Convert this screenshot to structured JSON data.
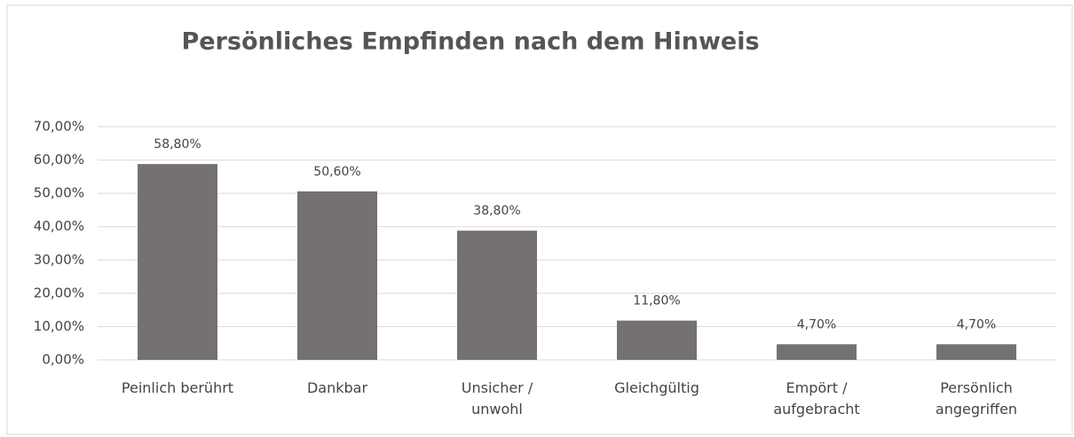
{
  "chart_data": {
    "type": "bar",
    "title": "Persönliches Empfinden nach dem Hinweis",
    "categories": [
      "Peinlich berührt",
      "Dankbar",
      "Unsicher /\nunwohl",
      "Gleichgültig",
      "Empört /\naufgebracht",
      "Persönlich\nangegriffen"
    ],
    "values": [
      58.8,
      50.6,
      38.8,
      11.8,
      4.7,
      4.7
    ],
    "value_labels": [
      "58,80%",
      "50,60%",
      "38,80%",
      "11,80%",
      "4,70%",
      "4,70%"
    ],
    "color": "#767171",
    "ylim": [
      0,
      70
    ],
    "yticks": [
      {
        "value": 0,
        "label": "0,00%"
      },
      {
        "value": 10,
        "label": "10,00%"
      },
      {
        "value": 20,
        "label": "20,00%"
      },
      {
        "value": 30,
        "label": "30,00%"
      },
      {
        "value": 40,
        "label": "40,00%"
      },
      {
        "value": 50,
        "label": "50,00%"
      },
      {
        "value": 60,
        "label": "60,00%"
      },
      {
        "value": 70,
        "label": "70,00%"
      }
    ],
    "grid": true
  }
}
